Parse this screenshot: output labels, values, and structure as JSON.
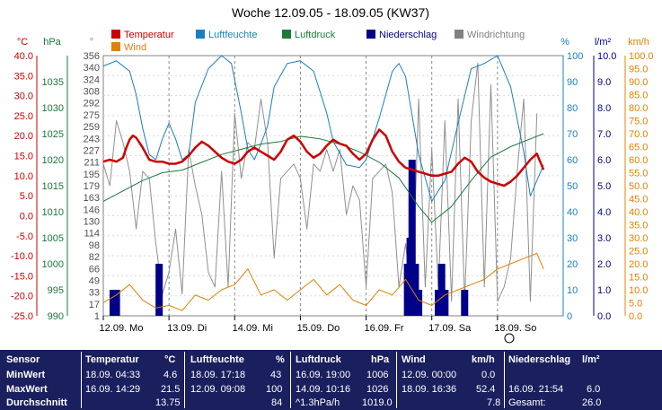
{
  "chart_data": {
    "type": "line",
    "title": "Woche 12.09.05 - 18.09.05 (KW37)",
    "legend": [
      {
        "label": "Temperatur",
        "color": "#cc0000"
      },
      {
        "label": "Wind",
        "color": "#e08000"
      },
      {
        "label": "Luftfeuchte",
        "color": "#1a7fc0"
      },
      {
        "label": "Luftdruck",
        "color": "#1a7a3a"
      },
      {
        "label": "Niederschlag",
        "color": "#000088"
      },
      {
        "label": "Windrichtung",
        "color": "#808080"
      }
    ],
    "axes": {
      "temp": {
        "unit": "°C",
        "color": "#cc0000",
        "ylim": [
          -25,
          40
        ],
        "ticks": [
          "40.0",
          "35.0",
          "30.0",
          "25.0",
          "20.0",
          "15.0",
          "10.0",
          "5.0",
          "0.0",
          "-5.0",
          "-10.0",
          "-15.0",
          "-20.0",
          "-25.0"
        ]
      },
      "pressure": {
        "unit": "hPa",
        "color": "#1a7a3a",
        "ylim": [
          990,
          1040
        ],
        "ticks": [
          "1035",
          "1030",
          "1025",
          "1020",
          "1015",
          "1010",
          "1005",
          "1000",
          "995",
          "990"
        ]
      },
      "direction": {
        "unit": "°",
        "color": "#808080",
        "ylim": [
          0,
          360
        ],
        "ticks": [
          "356",
          "340",
          "324",
          "308",
          "292",
          "275",
          "259",
          "243",
          "227",
          "211",
          "195",
          "179",
          "163",
          "146",
          "130",
          "114",
          "98",
          "82",
          "66",
          "49",
          "33",
          "17",
          "1"
        ]
      },
      "humidity": {
        "unit": "%",
        "color": "#1a7fc0",
        "ylim": [
          0,
          100
        ],
        "ticks": [
          "100",
          "90",
          "80",
          "70",
          "60",
          "50",
          "40",
          "30",
          "20",
          "10",
          "0"
        ]
      },
      "rain": {
        "unit": "l/m²",
        "color": "#000088",
        "ylim": [
          0,
          10
        ],
        "ticks": [
          "10.0",
          "9.0",
          "8.0",
          "7.0",
          "6.0",
          "5.0",
          "4.0",
          "3.0",
          "2.0",
          "1.0",
          "0.0"
        ]
      },
      "wind": {
        "unit": "km/h",
        "color": "#e08000",
        "ylim": [
          0,
          100
        ],
        "ticks": [
          "100.0",
          "95.0",
          "90.0",
          "85.0",
          "80.0",
          "75.0",
          "70.0",
          "65.0",
          "60.0",
          "55.0",
          "50.0",
          "45.0",
          "40.0",
          "35.0",
          "30.0",
          "25.0",
          "20.0",
          "15.0",
          "10.0",
          "5.0",
          "0.0"
        ]
      }
    },
    "xlabels": [
      "12.09. Mo",
      "13.09. Di",
      "14.09. Mi",
      "15.09. Do",
      "16.09. Fr",
      "17.09. Sa",
      "18.09. So"
    ],
    "grid": true,
    "series": [
      {
        "name": "Temperatur",
        "axis": "temp",
        "x": [
          0,
          0.1,
          0.2,
          0.3,
          0.35,
          0.4,
          0.45,
          0.5,
          0.6,
          0.7,
          0.8,
          0.9,
          1.0,
          1.1,
          1.2,
          1.3,
          1.4,
          1.5,
          1.6,
          1.7,
          1.8,
          1.9,
          2.0,
          2.1,
          2.2,
          2.3,
          2.4,
          2.5,
          2.6,
          2.7,
          2.8,
          2.9,
          3.0,
          3.1,
          3.2,
          3.3,
          3.4,
          3.5,
          3.6,
          3.7,
          3.8,
          3.9,
          4.0,
          4.1,
          4.2,
          4.3,
          4.4,
          4.5,
          4.6,
          4.7,
          4.8,
          4.9,
          5.0,
          5.1,
          5.2,
          5.3,
          5.4,
          5.5,
          5.6,
          5.7,
          5.8,
          5.9,
          6.0,
          6.1,
          6.2,
          6.3,
          6.4,
          6.5,
          6.6,
          6.7
        ],
        "values": [
          13.5,
          14,
          13.5,
          14.5,
          17,
          19,
          20,
          19.5,
          17,
          14,
          13.5,
          13.5,
          13,
          13,
          13.5,
          15,
          17,
          18.5,
          17.5,
          16,
          14.5,
          13.5,
          13,
          14,
          16,
          17,
          16,
          15,
          14,
          16,
          19,
          20,
          18.5,
          16,
          14.5,
          15.5,
          17.5,
          19,
          18,
          17.5,
          15.5,
          14,
          15.5,
          19,
          21.5,
          20,
          16,
          13.5,
          12,
          11.5,
          11,
          10.5,
          10,
          10,
          10.5,
          11,
          13,
          14.5,
          13.5,
          11,
          9.5,
          8.5,
          8,
          7.5,
          8.5,
          10,
          12,
          14,
          15.5,
          11.5
        ]
      },
      {
        "name": "Luftdruck",
        "axis": "pressure",
        "x": [
          0,
          0.3,
          0.6,
          0.9,
          1.2,
          1.5,
          1.8,
          2.1,
          2.4,
          2.7,
          3.0,
          3.3,
          3.6,
          3.9,
          4.2,
          4.5,
          4.8,
          5.0,
          5.3,
          5.6,
          5.9,
          6.2,
          6.5,
          6.7
        ],
        "values": [
          1012,
          1014,
          1016,
          1017.5,
          1018,
          1019.5,
          1021,
          1022,
          1023,
          1023.5,
          1024.5,
          1024,
          1023,
          1021.5,
          1019.5,
          1016.5,
          1011,
          1008,
          1011,
          1016,
          1020.5,
          1022.5,
          1024,
          1025
        ]
      },
      {
        "name": "Luftfeuchte",
        "axis": "humidity",
        "x": [
          0,
          0.2,
          0.4,
          0.5,
          0.6,
          0.7,
          0.8,
          0.9,
          1.0,
          1.1,
          1.2,
          1.3,
          1.4,
          1.6,
          1.8,
          1.95,
          2.1,
          2.2,
          2.3,
          2.4,
          2.5,
          2.6,
          2.8,
          3.0,
          3.2,
          3.4,
          3.5,
          3.7,
          3.9,
          4.0,
          4.2,
          4.4,
          4.5,
          4.6,
          4.8,
          5.0,
          5.2,
          5.4,
          5.6,
          5.8,
          6.0,
          6.2,
          6.4,
          6.5,
          6.7
        ],
        "values": [
          96,
          98,
          94,
          85,
          72,
          62,
          60,
          68,
          74,
          68,
          60,
          62,
          82,
          95,
          100,
          97,
          78,
          64,
          60,
          66,
          73,
          88,
          97,
          98,
          94,
          78,
          67,
          58,
          57,
          60,
          76,
          94,
          97,
          92,
          62,
          44,
          52,
          74,
          95,
          97,
          100,
          88,
          63,
          46,
          58
        ]
      },
      {
        "name": "Niederschlag",
        "axis": "rain",
        "kind": "bar",
        "x": [
          0.15,
          0.2,
          0.85,
          4.63,
          4.67,
          4.7,
          4.75,
          4.8,
          5.1,
          5.15,
          5.2,
          5.5
        ],
        "values": [
          1.0,
          1.0,
          2.0,
          2.0,
          3.0,
          6.0,
          2.0,
          1.0,
          1.0,
          2.0,
          1.0,
          1.0
        ]
      },
      {
        "name": "Windrichtung",
        "axis": "direction",
        "x": [
          0,
          0.1,
          0.2,
          0.3,
          0.4,
          0.5,
          0.6,
          0.7,
          0.8,
          0.9,
          1.0,
          1.1,
          1.2,
          1.3,
          1.4,
          1.5,
          1.6,
          1.7,
          1.8,
          1.9,
          2.0,
          2.1,
          2.2,
          2.3,
          2.4,
          2.5,
          2.6,
          2.7,
          2.8,
          2.9,
          3.0,
          3.1,
          3.2,
          3.3,
          3.4,
          3.5,
          3.6,
          3.7,
          3.8,
          3.9,
          4.0,
          4.1,
          4.2,
          4.3,
          4.4,
          4.5,
          4.6,
          4.7,
          4.8,
          4.9,
          5.0,
          5.1,
          5.2,
          5.3,
          5.4,
          5.5,
          5.6,
          5.7,
          5.8,
          5.9,
          6.0,
          6.1,
          6.2,
          6.3,
          6.4,
          6.5,
          6.6
        ],
        "values": [
          210,
          180,
          270,
          240,
          200,
          120,
          200,
          190,
          100,
          30,
          60,
          120,
          30,
          230,
          180,
          140,
          60,
          40,
          200,
          40,
          280,
          190,
          240,
          230,
          300,
          240,
          80,
          190,
          200,
          210,
          190,
          120,
          210,
          200,
          230,
          200,
          230,
          140,
          180,
          160,
          40,
          190,
          200,
          210,
          170,
          40,
          100,
          20,
          300,
          40,
          230,
          40,
          270,
          20,
          300,
          20,
          270,
          350,
          40,
          320,
          20,
          40,
          80,
          200,
          300,
          20,
          280
        ]
      },
      {
        "name": "Wind",
        "axis": "wind",
        "x": [
          0,
          0.2,
          0.4,
          0.6,
          0.8,
          1.0,
          1.2,
          1.4,
          1.6,
          1.8,
          2.0,
          2.2,
          2.4,
          2.6,
          2.8,
          3.0,
          3.2,
          3.4,
          3.6,
          3.8,
          4.0,
          4.2,
          4.4,
          4.6,
          4.8,
          5.0,
          5.2,
          5.4,
          5.6,
          5.8,
          6.0,
          6.2,
          6.4,
          6.6,
          6.7
        ],
        "values": [
          5,
          8,
          12,
          6,
          3,
          4,
          2,
          8,
          6,
          10,
          12,
          18,
          8,
          10,
          6,
          10,
          14,
          8,
          12,
          6,
          4,
          10,
          8,
          14,
          6,
          4,
          8,
          10,
          12,
          14,
          18,
          20,
          22,
          24,
          18
        ]
      }
    ]
  },
  "stats": {
    "headers": {
      "sensor": "Sensor",
      "temp": "Temperatur",
      "temp_unit": "°C",
      "hum": "Luftfeuchte",
      "hum_unit": "%",
      "press": "Luftdruck",
      "press_unit": "hPa",
      "wind": "Wind",
      "wind_unit": "km/h",
      "rain": "Niederschlag",
      "rain_unit": "l/m²"
    },
    "rows": [
      {
        "label": "MinWert",
        "temp_time": "18.09.  04:33",
        "temp_val": "4.6",
        "hum_time": "18.09.  17:18",
        "hum_val": "43",
        "press_time": "16.09.  19:00",
        "press_val": "1006",
        "wind_time": "12.09.  00:00",
        "wind_val": "0.0",
        "rain_time": "",
        "rain_val": ""
      },
      {
        "label": "MaxWert",
        "temp_time": "16.09.  14:29",
        "temp_val": "21.5",
        "hum_time": "12.09.  09:08",
        "hum_val": "100",
        "press_time": "14.09.  10:16",
        "press_val": "1026",
        "wind_time": "18.09.  16:36",
        "wind_val": "52.4",
        "rain_time": "16.09.  21:54",
        "rain_val": "6.0"
      },
      {
        "label": "Durchschnitt",
        "temp_time": "",
        "temp_val": "13.75",
        "hum_time": "",
        "hum_val": "84",
        "press_time": "^1.3hPa/h",
        "press_val": "1019.0",
        "wind_time": "",
        "wind_val": "7.8",
        "rain_time": "Gesamt:",
        "rain_val": "26.0"
      }
    ]
  }
}
